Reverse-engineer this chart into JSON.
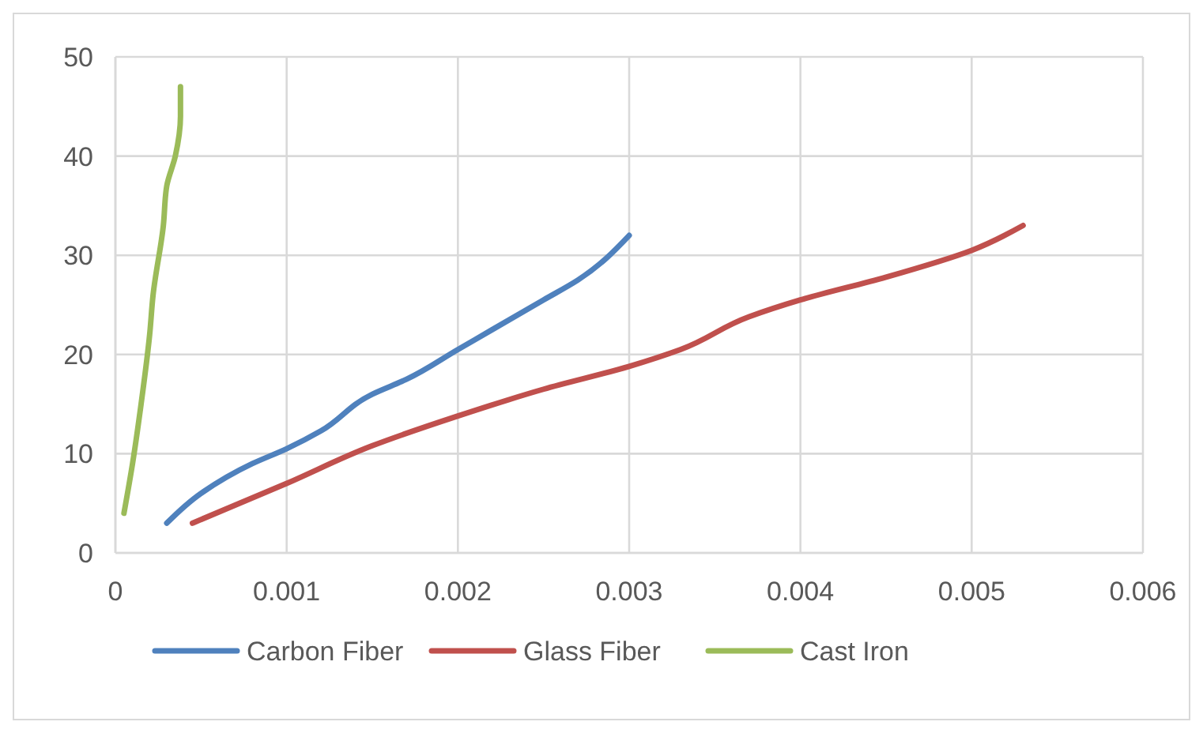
{
  "chart_data": {
    "type": "line",
    "xlim": [
      0,
      0.006
    ],
    "xticks": [
      0,
      0.001,
      0.002,
      0.003,
      0.004,
      0.005,
      0.006
    ],
    "ylim": [
      0,
      50
    ],
    "yticks": [
      0,
      10,
      20,
      30,
      40,
      50
    ],
    "grid": true,
    "legend": "bottom",
    "marker": "none",
    "line_style": "solid",
    "series": [
      {
        "name": "Carbon Fiber",
        "color": "#4f81bd",
        "x": [
          0.0003,
          0.0005,
          0.0008,
          0.001,
          0.0012,
          0.0015,
          0.0017,
          0.002,
          0.0022,
          0.0025,
          0.0027,
          0.003
        ],
        "values": [
          3,
          6,
          9,
          10.5,
          12.3,
          16,
          17.5,
          20.5,
          22.5,
          25.5,
          27.5,
          32
        ]
      },
      {
        "name": "Glass Fiber",
        "color": "#c0504d",
        "x": [
          0.00045,
          0.001,
          0.0015,
          0.002,
          0.0025,
          0.003,
          0.0033,
          0.0037,
          0.004,
          0.0045,
          0.005,
          0.0053
        ],
        "values": [
          3,
          7,
          10.8,
          13.8,
          16.5,
          18.8,
          20.5,
          23.8,
          25.5,
          27.8,
          30.5,
          33
        ]
      },
      {
        "name": "Cast Iron",
        "color": "#9bbb59",
        "x": [
          5e-05,
          0.0001,
          0.00015,
          0.0002,
          0.00022,
          0.00028,
          0.0003,
          0.00035,
          0.00038,
          0.00038
        ],
        "values": [
          4,
          9,
          15,
          22,
          26,
          33,
          37,
          40,
          44,
          47
        ]
      }
    ]
  }
}
